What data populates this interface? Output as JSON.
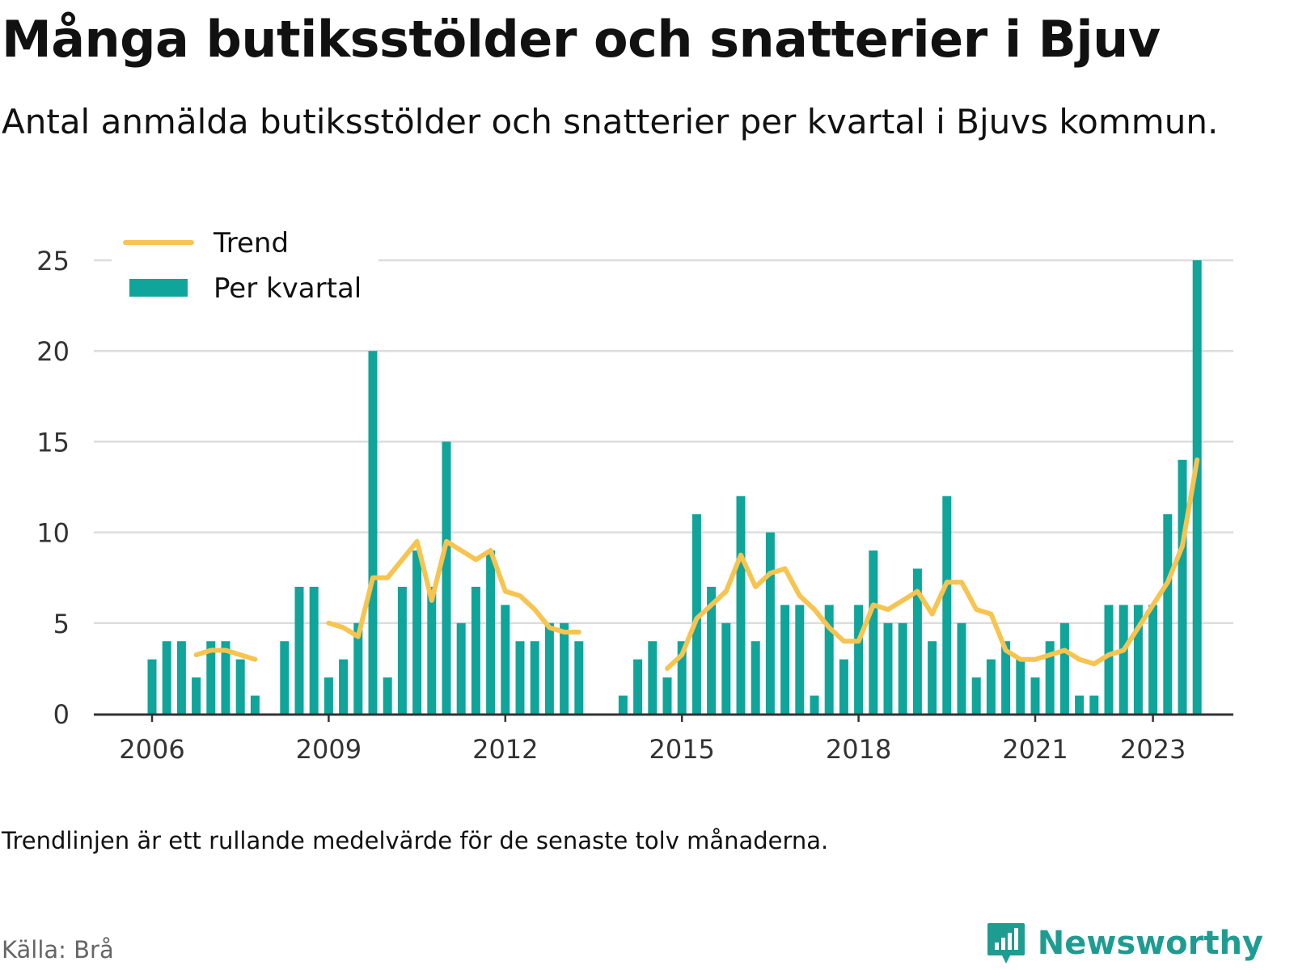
{
  "title": "Många butiksstölder och snatterier i Bjuv",
  "subtitle": "Antal anmälda butiksstölder och snatterier per kvartal i Bjuvs kommun.",
  "note": "Trendlinjen är ett rullande medelvärde för de senaste tolv månaderna.",
  "source": "Källa: Brå",
  "brand": {
    "name": "Newsworthy",
    "icon": "newsworthy-logo-icon"
  },
  "colors": {
    "bars": "#0fa59a",
    "trend": "#f7c450",
    "grid": "#dddddd",
    "axis": "#333333"
  },
  "chart_data": {
    "type": "bar",
    "x_start": "2006-Q1",
    "xticks": [
      "2006",
      "2009",
      "2012",
      "2015",
      "2018",
      "2021",
      "2023"
    ],
    "ylim": [
      0,
      25
    ],
    "yticks": [
      0,
      5,
      10,
      15,
      20,
      25
    ],
    "grid": true,
    "legend": {
      "placement": "top-left",
      "entries": [
        "Trend",
        "Per kvartal"
      ]
    },
    "series": [
      {
        "name": "Per kvartal",
        "kind": "bar",
        "values": [
          3,
          4,
          4,
          2,
          4,
          4,
          3,
          1,
          null,
          4,
          7,
          7,
          2,
          3,
          5,
          20,
          2,
          7,
          9,
          7,
          15,
          5,
          7,
          9,
          6,
          4,
          4,
          5,
          5,
          4,
          null,
          null,
          1,
          3,
          4,
          2,
          4,
          11,
          7,
          5,
          12,
          4,
          10,
          6,
          6,
          1,
          6,
          3,
          6,
          9,
          5,
          5,
          8,
          4,
          12,
          5,
          2,
          3,
          4,
          3,
          2,
          4,
          5,
          1,
          1,
          6,
          6,
          6,
          6,
          11,
          14,
          25
        ]
      },
      {
        "name": "Trend",
        "kind": "line",
        "values": [
          null,
          null,
          null,
          3.25,
          3.5,
          3.5,
          3.25,
          3.0,
          null,
          null,
          null,
          null,
          5.0,
          4.75,
          4.25,
          7.5,
          7.5,
          8.5,
          9.5,
          6.25,
          9.5,
          9.0,
          8.5,
          9.0,
          6.75,
          6.5,
          5.75,
          4.75,
          4.5,
          4.5,
          null,
          null,
          null,
          null,
          null,
          2.5,
          3.25,
          5.25,
          6.0,
          6.75,
          8.75,
          7.0,
          7.75,
          8.0,
          6.5,
          5.75,
          4.75,
          4.0,
          4.0,
          6.0,
          5.75,
          6.25,
          6.75,
          5.5,
          7.25,
          7.25,
          5.75,
          5.5,
          3.5,
          3.0,
          3.0,
          3.25,
          3.5,
          3.0,
          2.75,
          3.25,
          3.5,
          4.75,
          6.0,
          7.25,
          9.25,
          14.0
        ]
      }
    ]
  }
}
